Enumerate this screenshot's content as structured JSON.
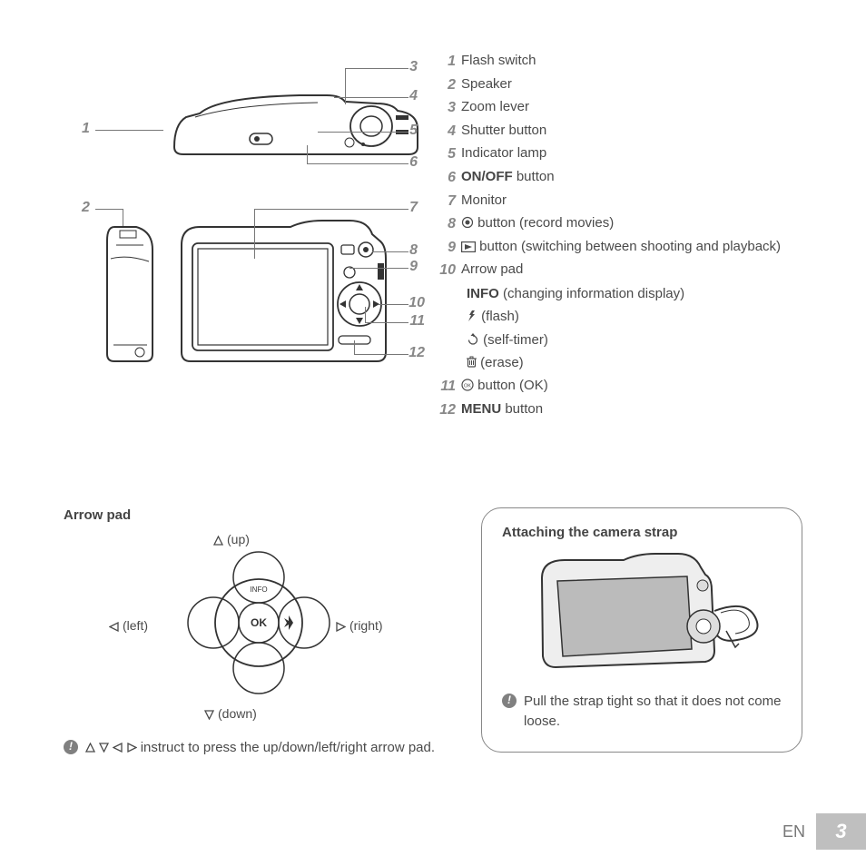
{
  "legend": [
    {
      "n": "1",
      "text": "Flash switch"
    },
    {
      "n": "2",
      "text": "Speaker"
    },
    {
      "n": "3",
      "text": "Zoom lever"
    },
    {
      "n": "4",
      "text": "Shutter button"
    },
    {
      "n": "5",
      "text": "Indicator lamp"
    },
    {
      "n": "6",
      "html": "<span class='bold'>ON/OFF</span> button"
    },
    {
      "n": "7",
      "text": "Monitor"
    },
    {
      "n": "8",
      "html": "<svg class='icon-sm' width='14' height='14'><circle cx='7' cy='7' r='5.5' fill='none' stroke='#4a4a4a' stroke-width='1.2'/><circle cx='7' cy='7' r='2.5' fill='#4a4a4a'/></svg> button (record movies)"
    },
    {
      "n": "9",
      "html": "<svg class='icon-sm' width='16' height='12'><rect x='0.6' y='0.6' width='14.8' height='10.8' fill='none' stroke='#4a4a4a' stroke-width='1.2'/><path d='M4 3 L12 6 L4 9 Z' fill='#4a4a4a'/></svg> button (switching between shooting and playback)"
    },
    {
      "n": "10",
      "text": "Arrow pad"
    },
    {
      "n": "11",
      "html": "<svg class='icon-sm' width='14' height='14'><circle cx='7' cy='7' r='6' fill='none' stroke='#4a4a4a' stroke-width='1.2'/><text x='7' y='9.5' text-anchor='middle' font-size='5.5' font-family='Arial' fill='#4a4a4a'>OK</text></svg> button (OK)"
    },
    {
      "n": "12",
      "html": "<span class='bold'>MENU</span> button"
    }
  ],
  "arrow_sub": [
    {
      "html": "<span class='bold'>INFO</span> (changing information display)"
    },
    {
      "html": "<svg class='icon-sm' width='12' height='14'><path d='M6 1 L3 6 L5 6 L2 13 L9 5 L6.5 5 L9 1 Z' fill='#4a4a4a'/></svg> (flash)"
    },
    {
      "html": "<svg class='icon-sm' width='14' height='14'><path d='M7 3 A4.5 4.5 0 1 1 2.5 7.5' fill='none' stroke='#4a4a4a' stroke-width='1.3'/><path d='M7 0 L9.5 3 L4.5 3 Z' fill='#4a4a4a'/></svg> (self-timer)"
    },
    {
      "html": "<svg class='icon-sm' width='11' height='14'><rect x='1.5' y='3' width='8' height='9' rx='1' fill='none' stroke='#4a4a4a' stroke-width='1.2'/><path d='M0 3 L11 3 M4 1 L7 1 L7 3 L4 3 Z M3.5 5 V10 M5.5 5 V10 M7.5 5 V10' stroke='#4a4a4a' stroke-width='1' fill='none'/></svg> (erase)"
    }
  ],
  "arrow_pad": {
    "title": "Arrow pad",
    "up": "(up)",
    "down": "(down)",
    "left": "(left)",
    "right": "(right)",
    "note": "instruct to press the up/down/left/right arrow pad."
  },
  "strap": {
    "title": "Attaching the camera strap",
    "note": "Pull the strap tight so that it does not come loose."
  },
  "footer": {
    "lang": "EN",
    "page": "3"
  },
  "top_callouts": [
    "1",
    "3",
    "4",
    "5",
    "6"
  ],
  "back_callouts": [
    "2",
    "7",
    "8",
    "9",
    "10",
    "11",
    "12"
  ]
}
